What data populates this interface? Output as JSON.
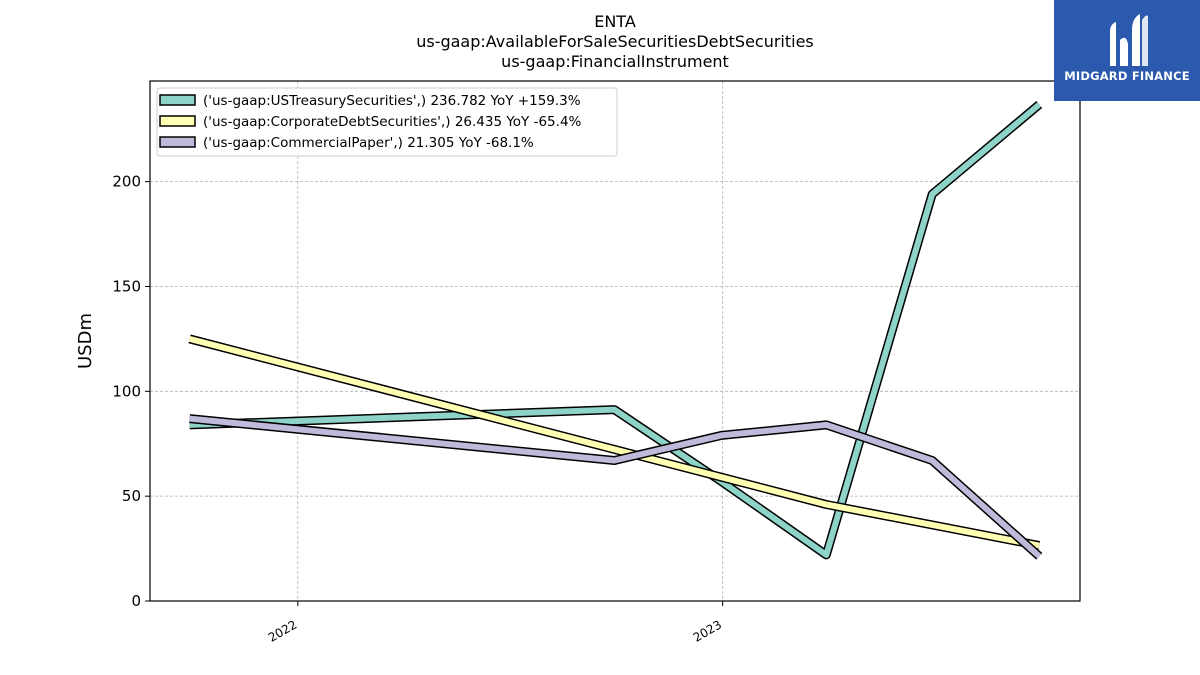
{
  "chart_data": {
    "type": "line",
    "title": [
      "ENTA",
      "us-gaap:AvailableForSaleSecuritiesDebtSecurities",
      "us-gaap:FinancialInstrument"
    ],
    "xlabel": "",
    "ylabel": "USDm",
    "x": [
      "2021-09-30",
      "2022-09-30",
      "2022-12-31",
      "2023-03-31",
      "2023-06-30",
      "2023-09-30"
    ],
    "xticks": [
      {
        "date": "2022-01-01",
        "label": "2022"
      },
      {
        "date": "2023-01-01",
        "label": "2023"
      }
    ],
    "xlim": [
      "2021-08-27",
      "2023-11-04"
    ],
    "ylim": [
      0,
      248
    ],
    "yticks": [
      0,
      50,
      100,
      150,
      200
    ],
    "grid": true,
    "legend_position": "top-left",
    "series": [
      {
        "name": "('us-gaap:USTreasurySecurities',) 236.782 YoY +159.3%",
        "color": "#8dd3c7",
        "x": [
          "2021-09-30",
          "2022-09-30",
          "2022-12-31",
          "2023-03-31",
          "2023-06-30",
          "2023-09-30"
        ],
        "values": [
          84,
          91.3,
          57,
          22,
          194,
          236.782
        ]
      },
      {
        "name": "('us-gaap:CorporateDebtSecurities',) 26.435 YoY -65.4%",
        "color": "#ffffb3",
        "x": [
          "2021-09-30",
          "2023-03-31",
          "2023-09-30"
        ],
        "values": [
          125,
          46,
          26.435
        ]
      },
      {
        "name": "('us-gaap:CommercialPaper',) 21.305 YoY -68.1%",
        "color": "#bebada",
        "x": [
          "2021-09-30",
          "2022-09-30",
          "2022-12-31",
          "2023-03-31",
          "2023-06-30",
          "2023-09-30"
        ],
        "values": [
          87,
          67,
          79,
          84,
          67,
          21.305
        ]
      }
    ]
  },
  "logo": {
    "text": "MIDGARD FINANCE",
    "background": "#2a59ad"
  }
}
